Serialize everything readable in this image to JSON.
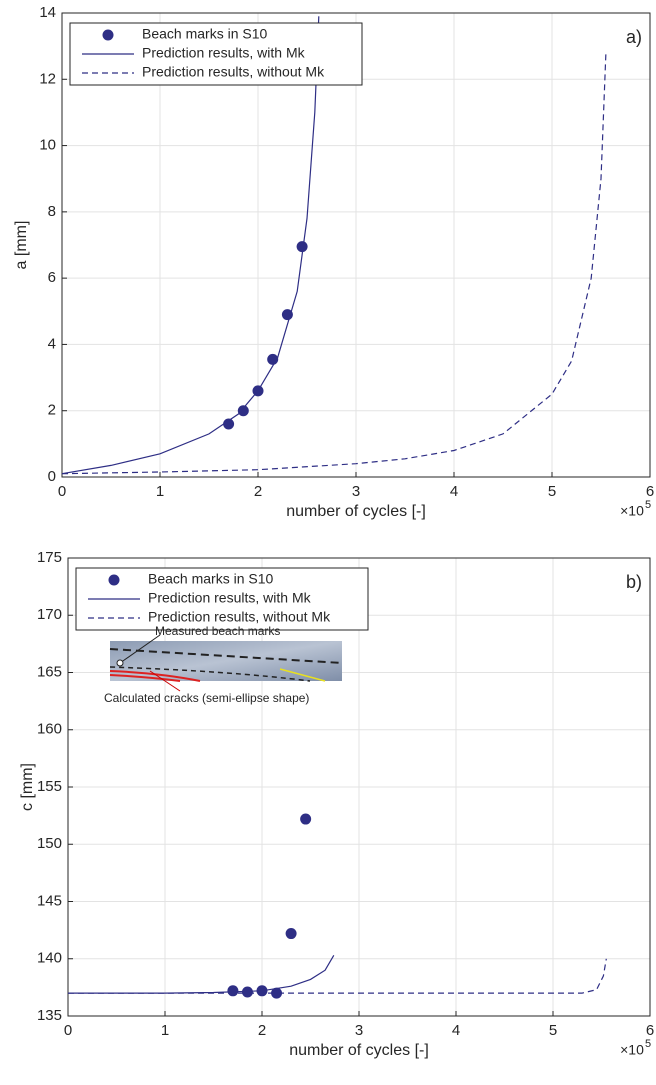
{
  "chart_data": [
    {
      "type": "line",
      "panel_label": "a)",
      "xlabel": "number of cycles [-]",
      "ylabel": "a [mm]",
      "x_multiplier": "×10",
      "x_multiplier_exponent": "5",
      "xlim": [
        0,
        6
      ],
      "xticks": [
        0,
        1,
        2,
        3,
        4,
        5,
        6
      ],
      "ylim": [
        0,
        14
      ],
      "yticks": [
        0,
        2,
        4,
        6,
        8,
        10,
        12,
        14
      ],
      "grid": true,
      "series": [
        {
          "name": "Beach marks in S10",
          "style": "markers",
          "color": "#2e2e85",
          "x": [
            1.7,
            1.85,
            2.0,
            2.15,
            2.3,
            2.45
          ],
          "values": [
            1.6,
            2.0,
            2.6,
            3.55,
            4.9,
            6.95
          ]
        },
        {
          "name": "Prediction results, with Mk",
          "style": "solid",
          "color": "#2e2e85",
          "x": [
            0,
            0.5,
            1,
            1.5,
            1.8,
            2.0,
            2.2,
            2.4,
            2.5,
            2.58,
            2.62
          ],
          "values": [
            0.1,
            0.35,
            0.7,
            1.3,
            1.9,
            2.6,
            3.6,
            5.6,
            7.8,
            11.0,
            13.9
          ]
        },
        {
          "name": "Prediction results, without Mk",
          "style": "dashed",
          "color": "#2e2e85",
          "x": [
            0,
            1,
            2,
            3,
            3.5,
            4,
            4.5,
            5,
            5.2,
            5.4,
            5.5,
            5.55
          ],
          "values": [
            0.1,
            0.15,
            0.22,
            0.4,
            0.55,
            0.8,
            1.3,
            2.5,
            3.5,
            6.0,
            9.0,
            12.8
          ]
        }
      ]
    },
    {
      "type": "line",
      "panel_label": "b)",
      "xlabel": "number of cycles [-]",
      "ylabel": "c [mm]",
      "x_multiplier": "×10",
      "x_multiplier_exponent": "5",
      "xlim": [
        0,
        6
      ],
      "xticks": [
        0,
        1,
        2,
        3,
        4,
        5,
        6
      ],
      "ylim": [
        135,
        175
      ],
      "yticks": [
        135,
        140,
        145,
        150,
        155,
        160,
        165,
        170,
        175
      ],
      "grid": true,
      "inset_labels": [
        "Measured beach marks",
        "Calculated cracks (semi-ellipse  shape)"
      ],
      "series": [
        {
          "name": "Beach marks in S10",
          "style": "markers",
          "color": "#2e2e85",
          "x": [
            1.7,
            1.85,
            2.0,
            2.15,
            2.3,
            2.45
          ],
          "values": [
            137.2,
            137.1,
            137.2,
            137.0,
            142.2,
            152.2
          ]
        },
        {
          "name": "Prediction results, with Mk",
          "style": "solid",
          "color": "#2e2e85",
          "x": [
            0,
            1,
            1.5,
            2,
            2.3,
            2.5,
            2.65,
            2.74
          ],
          "values": [
            137,
            137,
            137.05,
            137.2,
            137.6,
            138.2,
            139.0,
            140.3
          ]
        },
        {
          "name": "Prediction results, without Mk",
          "style": "dashed",
          "color": "#2e2e85",
          "x": [
            0,
            5.3,
            5.45,
            5.52,
            5.55
          ],
          "values": [
            137,
            137,
            137.3,
            138.5,
            140
          ]
        }
      ]
    }
  ]
}
